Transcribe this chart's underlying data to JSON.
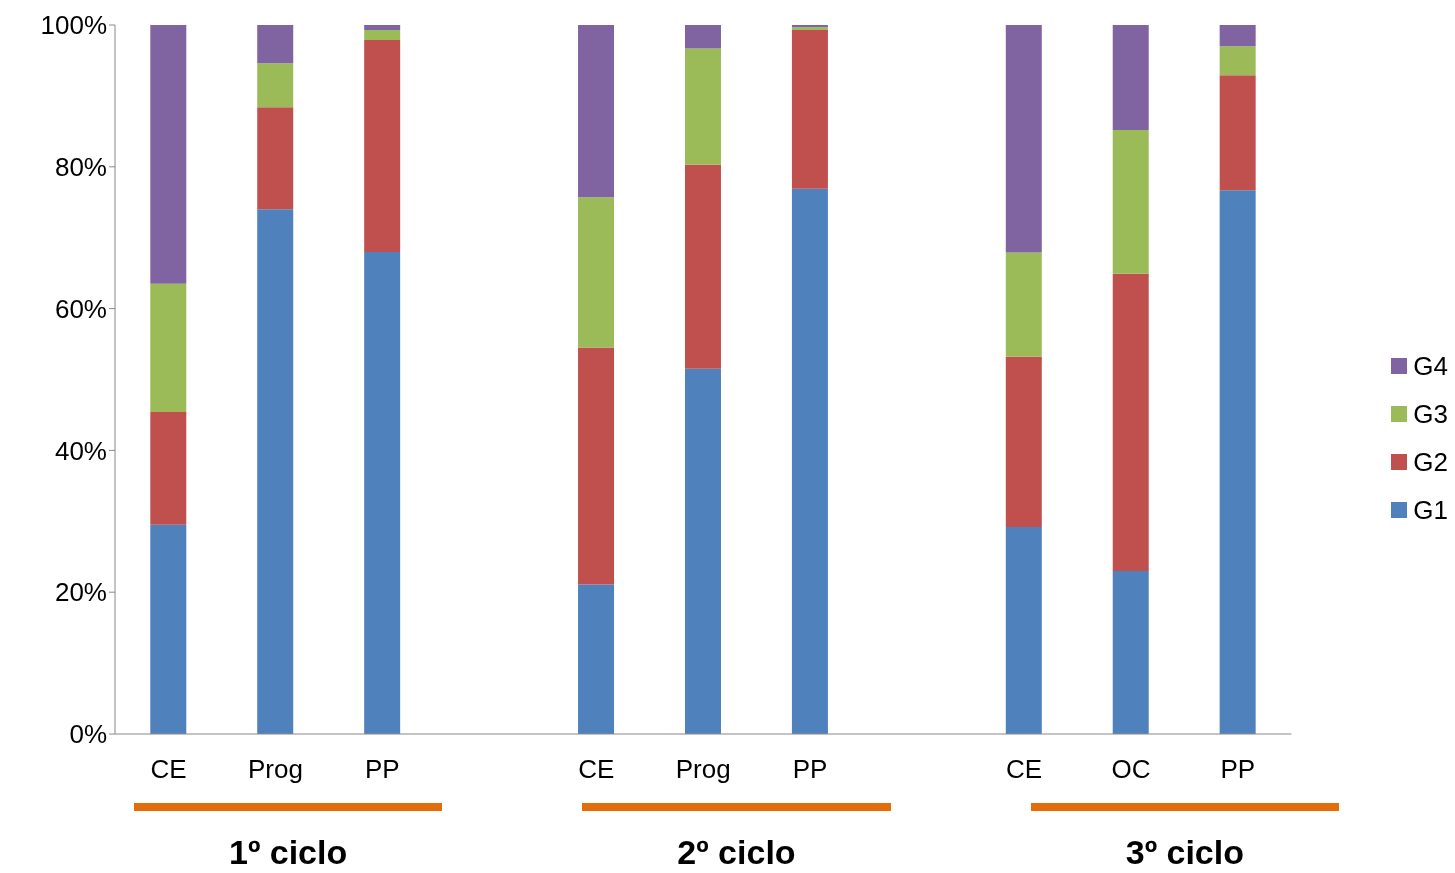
{
  "chart_data": {
    "type": "bar",
    "stacked": true,
    "categories": [
      "CE",
      "Prog",
      "PP",
      null,
      "CE",
      "Prog",
      "PP",
      null,
      "CE",
      "OC",
      "PP"
    ],
    "series": [
      {
        "name": "G1",
        "color": "#4f81bd",
        "values": [
          29.5,
          74.0,
          68.0,
          null,
          21.1,
          51.5,
          76.9,
          null,
          29.2,
          23.0,
          76.7
        ]
      },
      {
        "name": "G2",
        "color": "#c0504d",
        "values": [
          15.9,
          14.4,
          29.9,
          null,
          33.4,
          28.8,
          22.4,
          null,
          24.0,
          41.9,
          16.2
        ]
      },
      {
        "name": "G3",
        "color": "#9bbb59",
        "values": [
          18.1,
          6.2,
          1.4,
          null,
          21.2,
          16.4,
          0.4,
          null,
          14.7,
          20.3,
          4.1
        ]
      },
      {
        "name": "G4",
        "color": "#8064a2",
        "values": [
          36.5,
          5.4,
          0.7,
          null,
          24.3,
          3.3,
          0.3,
          null,
          32.1,
          14.8,
          3.0
        ]
      }
    ],
    "ylim": [
      0,
      100
    ],
    "yticks": [
      {
        "value": 0,
        "label": "0%"
      },
      {
        "value": 20,
        "label": "20%"
      },
      {
        "value": 40,
        "label": "40%"
      },
      {
        "value": 60,
        "label": "60%"
      },
      {
        "value": 80,
        "label": "80%"
      },
      {
        "value": 100,
        "label": "100%"
      }
    ],
    "grid": false,
    "legend": "right",
    "annotations": [
      "1º ciclo",
      "2º ciclo",
      "3º ciclo"
    ]
  }
}
